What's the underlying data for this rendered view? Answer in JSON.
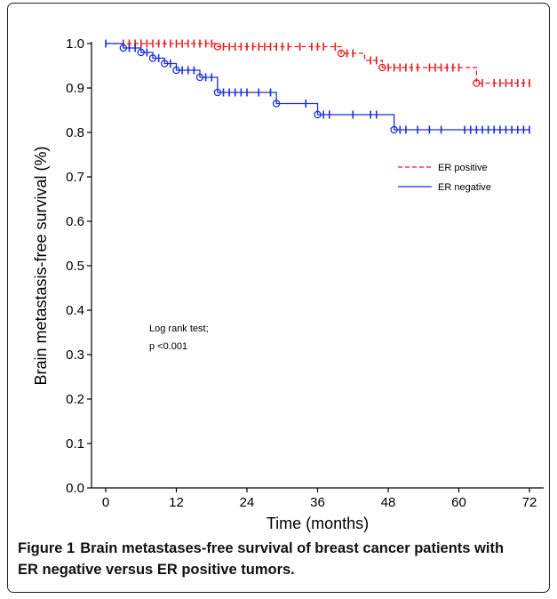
{
  "caption": {
    "label": "Figure 1",
    "text": "Brain metastases-free survival of breast cancer patients with ER negative versus ER positive tumors."
  },
  "annotation": [
    "Log rank test;",
    "p <0.001"
  ],
  "chart_data": {
    "type": "line",
    "step": true,
    "xlabel": "Time (months)",
    "ylabel": "Brain metastasis-free survival (%)",
    "xlim": [
      -3,
      73
    ],
    "ylim": [
      0,
      1.0
    ],
    "x_ticks": [
      0,
      12,
      24,
      36,
      48,
      60,
      72
    ],
    "y_ticks": [
      0.0,
      0.1,
      0.2,
      0.3,
      0.4,
      0.5,
      0.6,
      0.7,
      0.8,
      0.9,
      1.0
    ],
    "y_tick_labels": [
      "0.0",
      "0.1",
      "0.2",
      "0.3",
      "0.4",
      "0.5",
      "0.6",
      "0.7",
      "0.8",
      "0.9",
      "1.0"
    ],
    "grid": false,
    "legend_position": "right",
    "series": [
      {
        "name": "ER positive",
        "color": "#e8191f",
        "line_style": "dashed",
        "steps": [
          [
            0,
            1.0
          ],
          [
            19,
            0.993
          ],
          [
            40,
            0.978
          ],
          [
            44,
            0.962
          ],
          [
            47,
            0.946
          ],
          [
            63,
            0.911
          ],
          [
            72,
            0.911
          ]
        ],
        "events": [
          [
            19,
            0.993
          ],
          [
            40,
            0.978
          ],
          [
            47,
            0.946
          ],
          [
            63,
            0.911
          ]
        ],
        "censored": [
          3,
          4,
          5,
          6,
          7,
          8,
          9,
          10,
          11,
          12,
          13,
          14,
          15,
          16,
          17,
          18,
          20,
          21,
          22,
          23,
          24,
          25,
          26,
          27,
          28,
          29,
          30,
          31,
          33,
          35,
          36,
          37,
          39,
          41,
          42,
          45,
          46,
          48,
          49,
          50,
          51,
          52,
          53,
          55,
          56,
          57,
          58,
          59,
          60,
          64,
          66,
          67,
          68,
          69,
          70,
          71,
          72
        ]
      },
      {
        "name": "ER negative",
        "color": "#1a2fd6",
        "line_style": "solid",
        "steps": [
          [
            0,
            1.0
          ],
          [
            3,
            0.99
          ],
          [
            6,
            0.98
          ],
          [
            8,
            0.967
          ],
          [
            10,
            0.955
          ],
          [
            12,
            0.94
          ],
          [
            16,
            0.924
          ],
          [
            19,
            0.89
          ],
          [
            29,
            0.865
          ],
          [
            36,
            0.84
          ],
          [
            49,
            0.806
          ],
          [
            72,
            0.806
          ]
        ],
        "events": [
          [
            3,
            0.99
          ],
          [
            6,
            0.98
          ],
          [
            8,
            0.967
          ],
          [
            10,
            0.955
          ],
          [
            12,
            0.94
          ],
          [
            16,
            0.924
          ],
          [
            19,
            0.89
          ],
          [
            29,
            0.865
          ],
          [
            36,
            0.84
          ],
          [
            49,
            0.806
          ]
        ],
        "censored": [
          0,
          4,
          5,
          7,
          9,
          11,
          13,
          14,
          15,
          17,
          18,
          20,
          21,
          22,
          23,
          24,
          26,
          28,
          34,
          37,
          38,
          42,
          45,
          46,
          50,
          51,
          53,
          55,
          57,
          61,
          62,
          63,
          64,
          65,
          66,
          67,
          68,
          69,
          70,
          71,
          72
        ]
      }
    ]
  }
}
